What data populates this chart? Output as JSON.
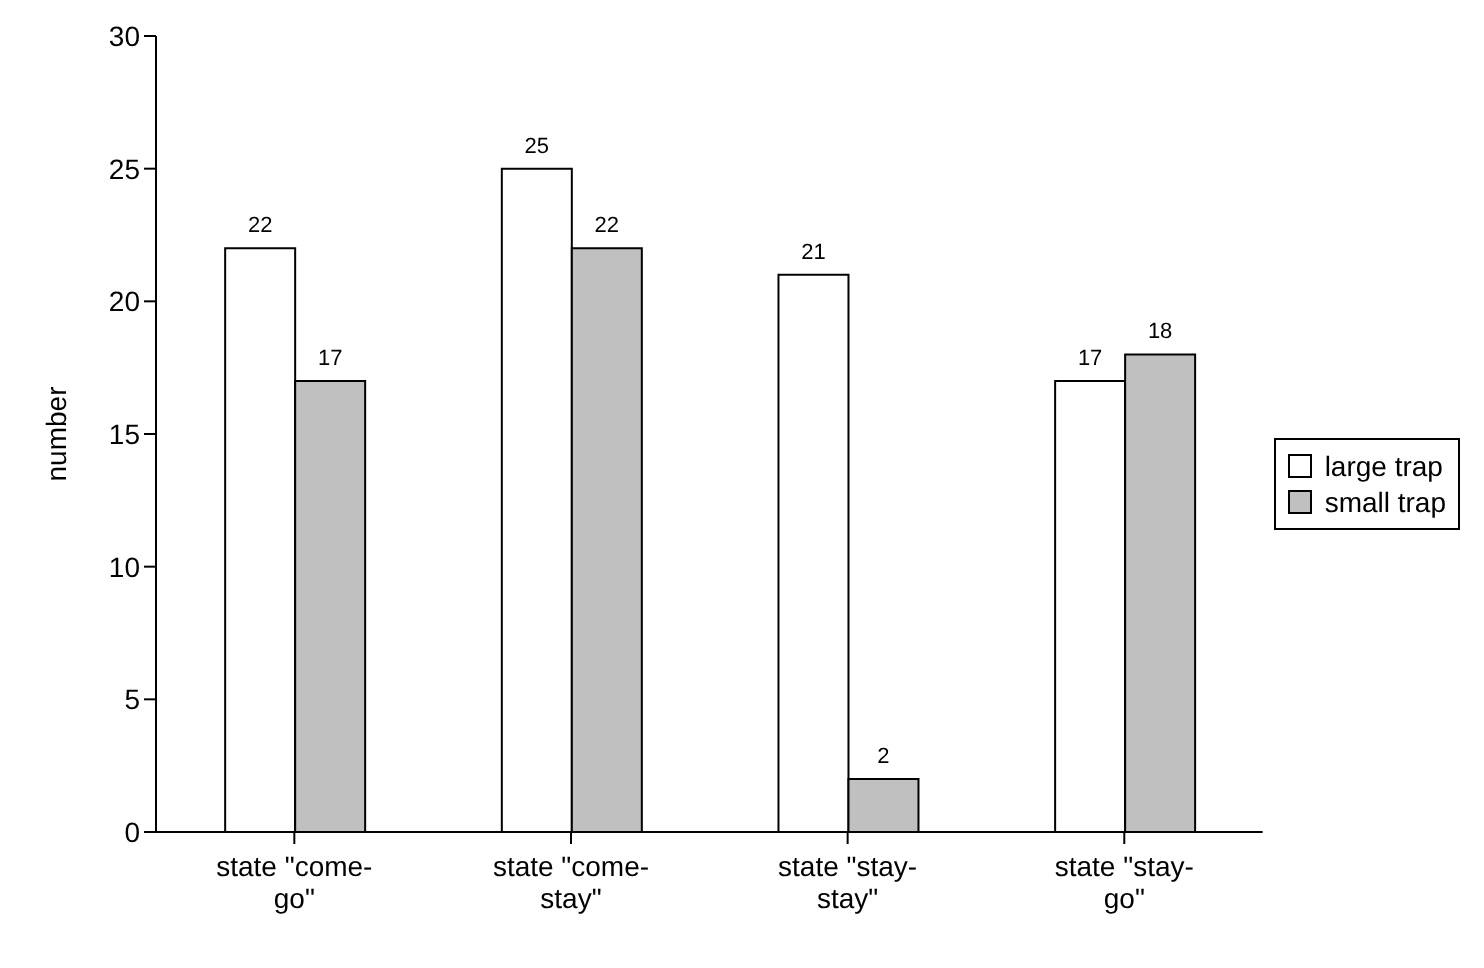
{
  "chart_data": {
    "type": "bar",
    "ylabel": "number",
    "categories": [
      "state \"come-go\"",
      "state \"come-stay\"",
      "state \"stay-stay\"",
      "state \"stay-go\""
    ],
    "series": [
      {
        "name": "large trap",
        "color": "#ffffff",
        "values": [
          22,
          25,
          21,
          17
        ]
      },
      {
        "name": "small trap",
        "color": "#c0c0c0",
        "values": [
          17,
          22,
          2,
          18
        ]
      }
    ],
    "ylim": [
      0,
      30
    ],
    "yticks": [
      0,
      5,
      10,
      15,
      20,
      25,
      30
    ],
    "grid": false,
    "legend": "right",
    "data_labels": true
  }
}
